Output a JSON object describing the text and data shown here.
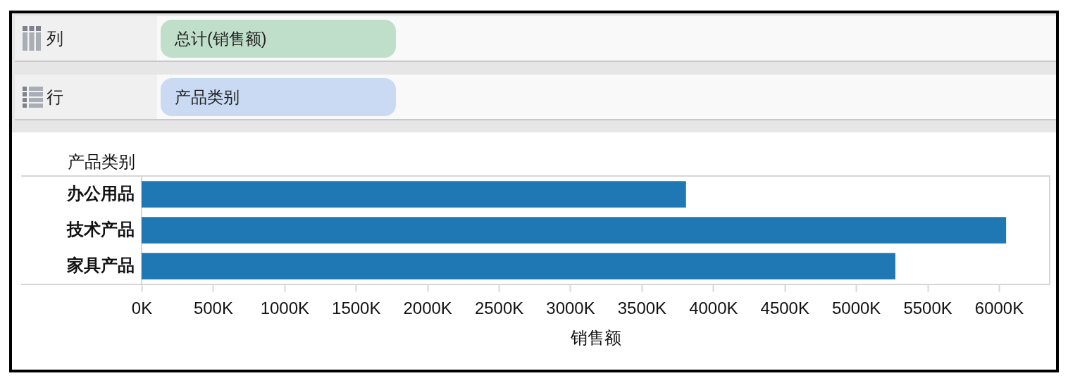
{
  "chart_data": {
    "type": "bar",
    "orientation": "horizontal",
    "xlabel": "销售额",
    "ylabel": "产品类别",
    "annotations": [
      "列",
      "总计(销售额)",
      "行",
      "产品类别"
    ],
    "categories": [
      "办公用品",
      "技术产品",
      "家具产品"
    ],
    "values": [
      3810000,
      6050000,
      5275000
    ],
    "color": "#1f77b4",
    "xlim": [
      0,
      6355000
    ],
    "xticks": [
      {
        "value": 0,
        "label": "0K"
      },
      {
        "value": 500000,
        "label": "500K"
      },
      {
        "value": 1000000,
        "label": "1000K"
      },
      {
        "value": 1500000,
        "label": "1500K"
      },
      {
        "value": 2000000,
        "label": "2000K"
      },
      {
        "value": 2500000,
        "label": "2500K"
      },
      {
        "value": 3000000,
        "label": "3000K"
      },
      {
        "value": 3500000,
        "label": "3500K"
      },
      {
        "value": 4000000,
        "label": "4000K"
      },
      {
        "value": 4500000,
        "label": "4500K"
      },
      {
        "value": 5000000,
        "label": "5000K"
      },
      {
        "value": 5500000,
        "label": "5500K"
      },
      {
        "value": 6000000,
        "label": "6000K"
      }
    ]
  }
}
